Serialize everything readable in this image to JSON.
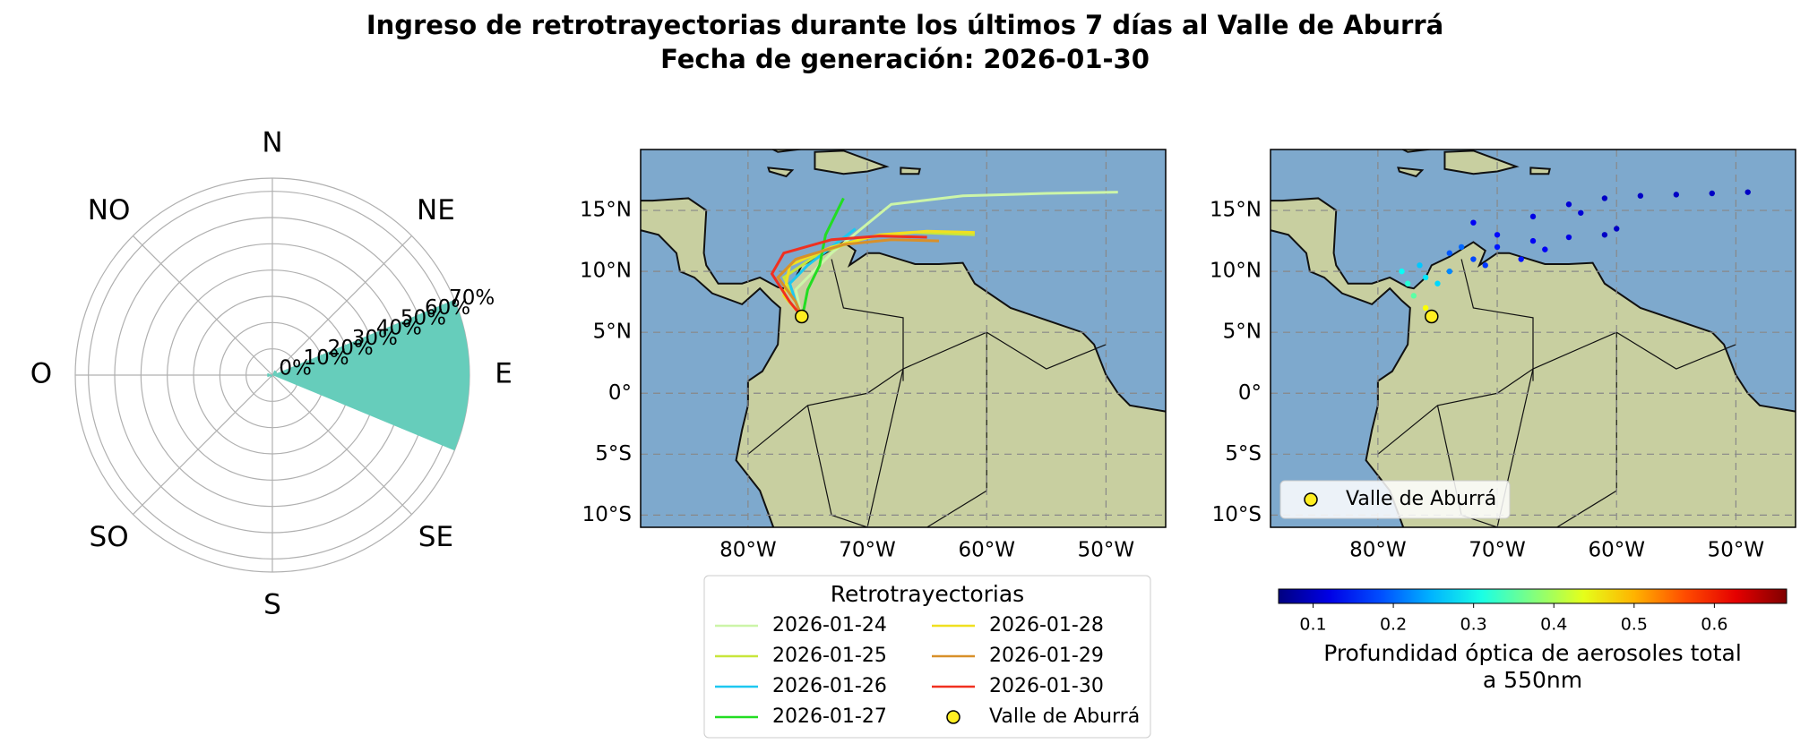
{
  "title": "Ingreso de retrotrayectorias durante los últimos 7 días al Valle de Aburrá",
  "subtitle": "Fecha de generación: 2026-01-30",
  "chart_data": [
    {
      "type": "polar_bar",
      "categories": [
        "N",
        "NE",
        "E",
        "SE",
        "S",
        "SO",
        "O",
        "NO"
      ],
      "values": [
        0,
        2,
        75,
        0,
        0,
        1,
        2,
        0
      ],
      "color": "#66cdbb",
      "rlim": [
        0,
        75
      ],
      "rticks": [
        {
          "value": 0,
          "label": "0%"
        },
        {
          "value": 10,
          "label": "10%"
        },
        {
          "value": 20,
          "label": "20%"
        },
        {
          "value": 30,
          "label": "30%"
        },
        {
          "value": 40,
          "label": "40%"
        },
        {
          "value": 50,
          "label": "50%"
        },
        {
          "value": 60,
          "label": "60%"
        },
        {
          "value": 70,
          "label": "70%"
        }
      ]
    },
    {
      "type": "trajectory",
      "legend_title": "Retrotrayectorias",
      "xlim": [
        -89,
        -45
      ],
      "ylim": [
        -11,
        20
      ],
      "xticks": [
        {
          "value": -80,
          "label": "80°W"
        },
        {
          "value": -70,
          "label": "70°W"
        },
        {
          "value": -60,
          "label": "60°W"
        },
        {
          "value": -50,
          "label": "50°W"
        }
      ],
      "yticks": [
        {
          "value": 15,
          "label": "15°N"
        },
        {
          "value": 10,
          "label": "10°N"
        },
        {
          "value": 5,
          "label": "5°N"
        },
        {
          "value": 0,
          "label": "0°"
        },
        {
          "value": -5,
          "label": "5°S"
        },
        {
          "value": -10,
          "label": "10°S"
        }
      ],
      "series": [
        {
          "name": "2026-01-24",
          "color": "#ccf5a8",
          "x": [
            -49,
            -55,
            -62,
            -68,
            -73,
            -76,
            -75.5
          ],
          "y": [
            16.5,
            16.4,
            16.2,
            15.5,
            11.5,
            8.5,
            6.3
          ]
        },
        {
          "name": "2026-01-25",
          "color": "#c8e63c",
          "x": [
            -61,
            -66,
            -70,
            -74,
            -77,
            -76,
            -75.5
          ],
          "y": [
            13,
            13.2,
            12.8,
            11.5,
            9.5,
            7.5,
            6.3
          ]
        },
        {
          "name": "2026-01-26",
          "color": "#1ec8f0",
          "x": [
            -71,
            -73,
            -75,
            -76.5,
            -76,
            -75.5
          ],
          "y": [
            13.5,
            12,
            10.5,
            9,
            7.5,
            6.3
          ]
        },
        {
          "name": "2026-01-27",
          "color": "#22dd22",
          "x": [
            -72,
            -73.5,
            -74,
            -75,
            -75.3,
            -75.5
          ],
          "y": [
            16,
            13,
            10.5,
            8.5,
            7,
            6.3
          ]
        },
        {
          "name": "2026-01-28",
          "color": "#f0e020",
          "x": [
            -61,
            -65,
            -69,
            -73,
            -76.5,
            -77,
            -75.5
          ],
          "y": [
            13.2,
            13.3,
            13,
            12,
            10.5,
            8,
            6.3
          ]
        },
        {
          "name": "2026-01-29",
          "color": "#d8902a",
          "x": [
            -64,
            -68,
            -72,
            -76,
            -77.5,
            -76,
            -75.5
          ],
          "y": [
            12.5,
            12.6,
            12.2,
            11,
            9.5,
            7.5,
            6.3
          ]
        },
        {
          "name": "2026-01-30",
          "color": "#f03020",
          "x": [
            -65,
            -69,
            -73,
            -77,
            -78,
            -76.5,
            -75.5
          ],
          "y": [
            12.8,
            12.9,
            12.6,
            11.5,
            9.8,
            7.5,
            6.3
          ]
        }
      ],
      "site": {
        "name": "Valle de Aburrá",
        "color": "#ffee22",
        "x": -75.5,
        "y": 6.3
      }
    },
    {
      "type": "scatter_map",
      "xlim": [
        -89,
        -45
      ],
      "ylim": [
        -11,
        20
      ],
      "xticks": [
        {
          "value": -80,
          "label": "80°W"
        },
        {
          "value": -70,
          "label": "70°W"
        },
        {
          "value": -60,
          "label": "60°W"
        },
        {
          "value": -50,
          "label": "50°W"
        }
      ],
      "yticks": [
        {
          "value": 15,
          "label": "15°N"
        },
        {
          "value": 10,
          "label": "10°N"
        },
        {
          "value": 5,
          "label": "5°N"
        },
        {
          "value": 0,
          "label": "0°"
        },
        {
          "value": -5,
          "label": "5°S"
        },
        {
          "value": -10,
          "label": "10°S"
        }
      ],
      "x": [
        -49,
        -52,
        -55,
        -58,
        -61,
        -64,
        -67,
        -61,
        -64,
        -67,
        -70,
        -72,
        -74,
        -76,
        -77.5,
        -78,
        -77,
        -76,
        -75.5,
        -70,
        -72,
        -73,
        -71,
        -74,
        -75,
        -76.5,
        -68,
        -66,
        -60,
        -63
      ],
      "y": [
        16.5,
        16.4,
        16.3,
        16.2,
        16,
        15.5,
        14.5,
        13,
        12.8,
        12.5,
        12,
        11,
        10,
        9.5,
        9,
        10,
        8,
        7,
        6.5,
        13,
        14,
        12,
        10.5,
        11.5,
        9,
        10.5,
        11,
        11.8,
        13.5,
        14.8
      ],
      "values": [
        0.1,
        0.1,
        0.1,
        0.1,
        0.1,
        0.11,
        0.12,
        0.1,
        0.12,
        0.13,
        0.15,
        0.18,
        0.22,
        0.28,
        0.32,
        0.3,
        0.35,
        0.45,
        0.5,
        0.14,
        0.13,
        0.2,
        0.17,
        0.19,
        0.27,
        0.26,
        0.15,
        0.13,
        0.1,
        0.11
      ],
      "clim": [
        0.057,
        0.69
      ],
      "cticks": [
        0.1,
        0.2,
        0.3,
        0.4,
        0.5,
        0.6
      ],
      "colorbar_label": [
        "Profundidad óptica de aerosoles total",
        "a 550nm"
      ],
      "site": {
        "name": "Valle de Aburrá",
        "color": "#ffee22",
        "x": -75.5,
        "y": 6.3
      }
    }
  ]
}
